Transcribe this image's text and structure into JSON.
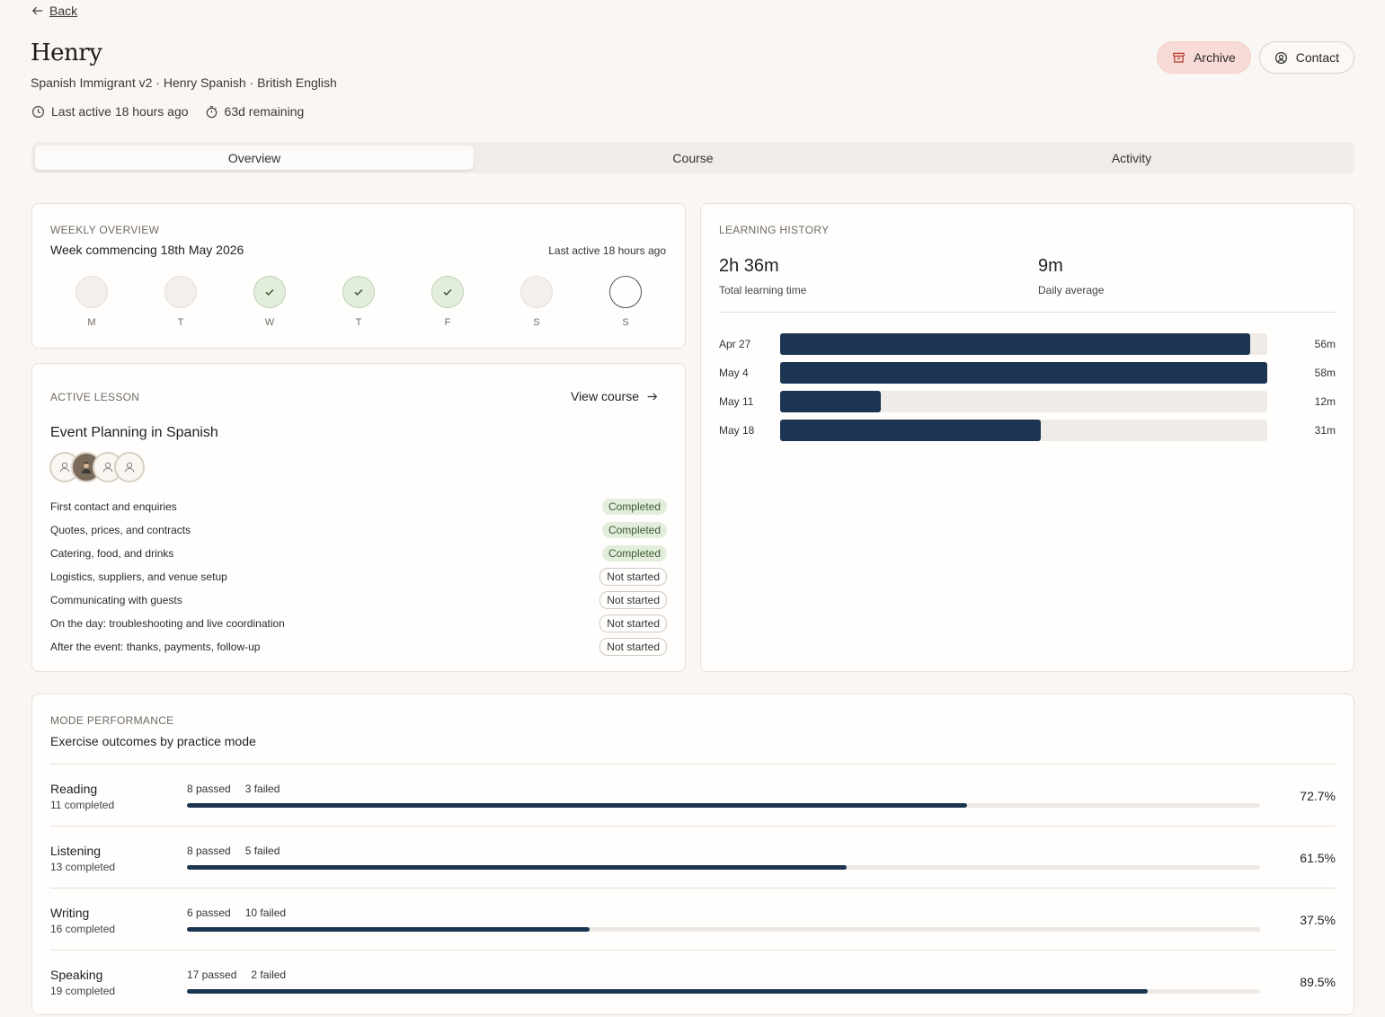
{
  "nav": {
    "back_label": "Back"
  },
  "header": {
    "title": "Henry",
    "subtitle": "Spanish Immigrant v2 · Henry Spanish · British English",
    "last_active": "Last active 18 hours ago",
    "remaining": "63d remaining",
    "archive_label": "Archive",
    "contact_label": "Contact",
    "archive_color": "#f8dad6"
  },
  "tabs": [
    {
      "label": "Overview",
      "active": true
    },
    {
      "label": "Course",
      "active": false
    },
    {
      "label": "Activity",
      "active": false
    }
  ],
  "weekly": {
    "heading": "WEEKLY OVERVIEW",
    "week_title": "Week commencing 18th May 2026",
    "last_active": "Last active 18 hours ago",
    "days": [
      {
        "label": "M",
        "state": "empty"
      },
      {
        "label": "T",
        "state": "empty"
      },
      {
        "label": "W",
        "state": "done"
      },
      {
        "label": "T",
        "state": "done"
      },
      {
        "label": "F",
        "state": "done"
      },
      {
        "label": "S",
        "state": "empty"
      },
      {
        "label": "S",
        "state": "today"
      }
    ]
  },
  "lesson": {
    "heading": "ACTIVE LESSON",
    "view_course_label": "View course",
    "title": "Event Planning in Spanish",
    "items": [
      {
        "name": "First contact and enquiries",
        "status": "Completed"
      },
      {
        "name": "Quotes, prices, and contracts",
        "status": "Completed"
      },
      {
        "name": "Catering, food, and drinks",
        "status": "Completed"
      },
      {
        "name": "Logistics, suppliers, and venue setup",
        "status": "Not started"
      },
      {
        "name": "Communicating with guests",
        "status": "Not started"
      },
      {
        "name": "On the day: troubleshooting and live coordination",
        "status": "Not started"
      },
      {
        "name": "After the event: thanks, payments, follow-up",
        "status": "Not started"
      }
    ]
  },
  "history": {
    "heading": "LEARNING HISTORY",
    "total_value": "2h 36m",
    "total_label": "Total learning time",
    "avg_value": "9m",
    "avg_label": "Daily average",
    "weeks": [
      {
        "date": "Apr 27",
        "minutes": 56,
        "value": "56m"
      },
      {
        "date": "May 4",
        "minutes": 58,
        "value": "58m"
      },
      {
        "date": "May 11",
        "minutes": 12,
        "value": "12m"
      },
      {
        "date": "May 18",
        "minutes": 31,
        "value": "31m"
      }
    ],
    "max_minutes": 58,
    "bar_color": "#1c3553"
  },
  "modes": {
    "heading": "MODE PERFORMANCE",
    "subtitle": "Exercise outcomes by practice mode",
    "rows": [
      {
        "name": "Reading",
        "completed": "11 completed",
        "passed": "8 passed",
        "failed": "3 failed",
        "pct": "72.7%",
        "fraction": 0.727
      },
      {
        "name": "Listening",
        "completed": "13 completed",
        "passed": "8 passed",
        "failed": "5 failed",
        "pct": "61.5%",
        "fraction": 0.615
      },
      {
        "name": "Writing",
        "completed": "16 completed",
        "passed": "6 passed",
        "failed": "10 failed",
        "pct": "37.5%",
        "fraction": 0.375
      },
      {
        "name": "Speaking",
        "completed": "19 completed",
        "passed": "17 passed",
        "failed": "2 failed",
        "pct": "89.5%",
        "fraction": 0.895
      }
    ]
  },
  "icons": {
    "back": "arrow-left-icon",
    "clock": "clock-icon",
    "timer": "timer-icon",
    "archive": "archive-icon",
    "contact": "user-circle-icon",
    "check": "check-icon",
    "arrow_right": "arrow-right-icon",
    "avatar": "user-icon"
  }
}
